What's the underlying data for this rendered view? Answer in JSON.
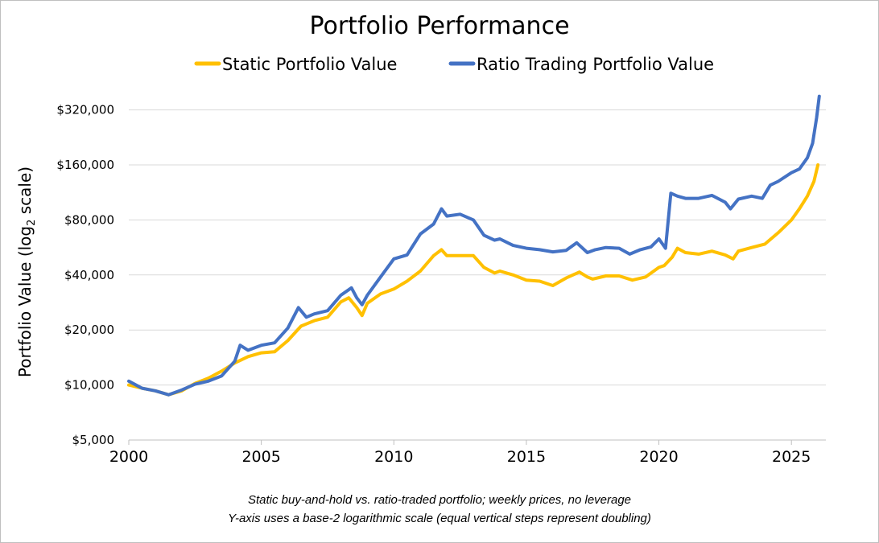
{
  "chart_data": {
    "type": "line",
    "title": "Portfolio Performance",
    "ylabel": "Portfolio Value (log",
    "ylabel_sub": "2",
    "ylabel_tail": " scale)",
    "xlabel": "",
    "y_scale": "log2",
    "xlim": [
      2000,
      2026.3
    ],
    "ylim": [
      5000,
      420000
    ],
    "grid": "horizontal",
    "legend_position": "top",
    "x_ticks": [
      "2000",
      "2005",
      "2010",
      "2015",
      "2020",
      "2025"
    ],
    "y_ticks": [
      {
        "value": 5000,
        "label": "$5,000"
      },
      {
        "value": 10000,
        "label": "$10,000"
      },
      {
        "value": 20000,
        "label": "$20,000"
      },
      {
        "value": 40000,
        "label": "$40,000"
      },
      {
        "value": 80000,
        "label": "$80,000"
      },
      {
        "value": 160000,
        "label": "$160,000"
      },
      {
        "value": 320000,
        "label": "$320,000"
      }
    ],
    "series": [
      {
        "name": "Static Portfolio Value",
        "color": "#FFC000",
        "points": [
          [
            2000.0,
            10000
          ],
          [
            2000.5,
            9600
          ],
          [
            2001.0,
            9300
          ],
          [
            2001.5,
            8850
          ],
          [
            2002.0,
            9300
          ],
          [
            2002.5,
            10200
          ],
          [
            2003.0,
            10900
          ],
          [
            2003.5,
            11900
          ],
          [
            2004.0,
            13200
          ],
          [
            2004.5,
            14300
          ],
          [
            2005.0,
            15000
          ],
          [
            2005.5,
            15200
          ],
          [
            2006.0,
            17500
          ],
          [
            2006.5,
            21000
          ],
          [
            2007.0,
            22500
          ],
          [
            2007.5,
            23500
          ],
          [
            2008.0,
            28500
          ],
          [
            2008.3,
            30000
          ],
          [
            2008.6,
            26500
          ],
          [
            2008.8,
            24000
          ],
          [
            2009.0,
            28000
          ],
          [
            2009.5,
            31500
          ],
          [
            2010.0,
            33500
          ],
          [
            2010.5,
            37000
          ],
          [
            2011.0,
            42000
          ],
          [
            2011.5,
            51000
          ],
          [
            2011.8,
            55000
          ],
          [
            2012.0,
            51000
          ],
          [
            2012.5,
            51000
          ],
          [
            2013.0,
            51000
          ],
          [
            2013.4,
            44000
          ],
          [
            2013.8,
            41000
          ],
          [
            2014.0,
            42000
          ],
          [
            2014.5,
            40000
          ],
          [
            2015.0,
            37500
          ],
          [
            2015.5,
            37000
          ],
          [
            2016.0,
            35000
          ],
          [
            2016.5,
            38500
          ],
          [
            2017.0,
            41500
          ],
          [
            2017.3,
            39000
          ],
          [
            2017.5,
            38000
          ],
          [
            2018.0,
            39500
          ],
          [
            2018.5,
            39500
          ],
          [
            2019.0,
            37500
          ],
          [
            2019.5,
            39000
          ],
          [
            2020.0,
            44000
          ],
          [
            2020.2,
            45000
          ],
          [
            2020.5,
            50000
          ],
          [
            2020.7,
            56000
          ],
          [
            2021.0,
            53000
          ],
          [
            2021.5,
            52000
          ],
          [
            2022.0,
            54000
          ],
          [
            2022.5,
            51500
          ],
          [
            2022.8,
            49000
          ],
          [
            2023.0,
            54000
          ],
          [
            2023.5,
            56500
          ],
          [
            2024.0,
            59000
          ],
          [
            2024.5,
            68000
          ],
          [
            2025.0,
            80000
          ],
          [
            2025.3,
            92000
          ],
          [
            2025.6,
            108000
          ],
          [
            2025.85,
            130000
          ],
          [
            2026.0,
            160000
          ]
        ]
      },
      {
        "name": "Ratio Trading Portfolio Value",
        "color": "#4472C4",
        "points": [
          [
            2000.0,
            10500
          ],
          [
            2000.5,
            9600
          ],
          [
            2001.0,
            9300
          ],
          [
            2001.5,
            8850
          ],
          [
            2002.0,
            9400
          ],
          [
            2002.5,
            10100
          ],
          [
            2003.0,
            10500
          ],
          [
            2003.5,
            11200
          ],
          [
            2004.0,
            13500
          ],
          [
            2004.2,
            16500
          ],
          [
            2004.5,
            15500
          ],
          [
            2005.0,
            16500
          ],
          [
            2005.5,
            17000
          ],
          [
            2006.0,
            20500
          ],
          [
            2006.4,
            26500
          ],
          [
            2006.7,
            23500
          ],
          [
            2007.0,
            24500
          ],
          [
            2007.5,
            25500
          ],
          [
            2008.0,
            31000
          ],
          [
            2008.4,
            34000
          ],
          [
            2008.6,
            30000
          ],
          [
            2008.8,
            27500
          ],
          [
            2009.0,
            31000
          ],
          [
            2009.5,
            39000
          ],
          [
            2010.0,
            49000
          ],
          [
            2010.5,
            51500
          ],
          [
            2011.0,
            67000
          ],
          [
            2011.5,
            76000
          ],
          [
            2011.8,
            92000
          ],
          [
            2012.0,
            84000
          ],
          [
            2012.5,
            86000
          ],
          [
            2013.0,
            80000
          ],
          [
            2013.4,
            66000
          ],
          [
            2013.8,
            62000
          ],
          [
            2014.0,
            63000
          ],
          [
            2014.5,
            58000
          ],
          [
            2015.0,
            56000
          ],
          [
            2015.5,
            55000
          ],
          [
            2016.0,
            53500
          ],
          [
            2016.5,
            54500
          ],
          [
            2016.9,
            60000
          ],
          [
            2017.3,
            53000
          ],
          [
            2017.6,
            55000
          ],
          [
            2018.0,
            56500
          ],
          [
            2018.5,
            56000
          ],
          [
            2018.9,
            52000
          ],
          [
            2019.3,
            55000
          ],
          [
            2019.7,
            57000
          ],
          [
            2020.0,
            63000
          ],
          [
            2020.25,
            56000
          ],
          [
            2020.45,
            112000
          ],
          [
            2020.7,
            108000
          ],
          [
            2021.0,
            105000
          ],
          [
            2021.5,
            105000
          ],
          [
            2022.0,
            109000
          ],
          [
            2022.5,
            100000
          ],
          [
            2022.7,
            92000
          ],
          [
            2023.0,
            104000
          ],
          [
            2023.5,
            108000
          ],
          [
            2023.9,
            105000
          ],
          [
            2024.2,
            124000
          ],
          [
            2024.5,
            130000
          ],
          [
            2025.0,
            145000
          ],
          [
            2025.3,
            152000
          ],
          [
            2025.6,
            175000
          ],
          [
            2025.8,
            210000
          ],
          [
            2025.95,
            290000
          ],
          [
            2026.05,
            380000
          ]
        ]
      }
    ]
  },
  "caption": {
    "line1": "Static buy-and-hold vs. ratio-traded portfolio; weekly prices, no leverage",
    "line2": "Y-axis uses a base-2 logarithmic scale (equal vertical steps represent doubling)"
  }
}
